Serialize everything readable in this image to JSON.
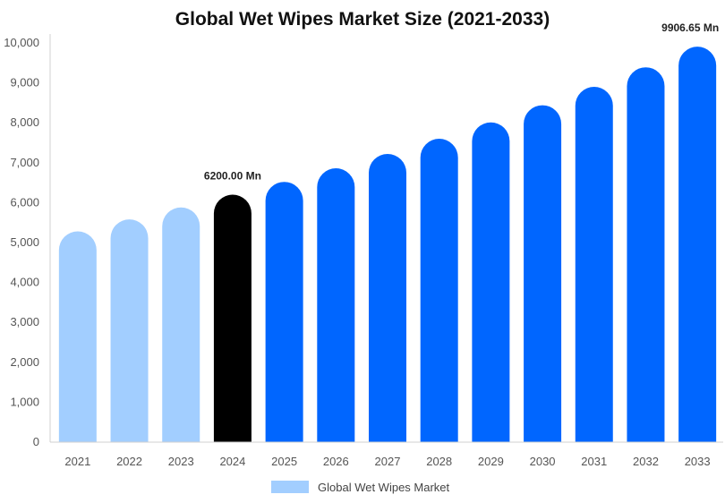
{
  "chart_data": {
    "type": "bar",
    "title": "Global Wet Wipes Market Size (2021-2033)",
    "xlabel": "",
    "ylabel": "",
    "ylim": [
      0,
      10000
    ],
    "yticks": [
      0,
      1000,
      2000,
      3000,
      4000,
      5000,
      6000,
      7000,
      8000,
      9000,
      10000
    ],
    "ytick_labels": [
      "0",
      "1,000",
      "2,000",
      "3,000",
      "4,000",
      "5,000",
      "6,000",
      "7,000",
      "8,000",
      "9,000",
      "10,000"
    ],
    "categories": [
      "2021",
      "2022",
      "2023",
      "2024",
      "2025",
      "2026",
      "2027",
      "2028",
      "2029",
      "2030",
      "2031",
      "2032",
      "2033"
    ],
    "series": [
      {
        "name": "Global Wet Wipes Market",
        "values": [
          5280,
          5580,
          5880,
          6200,
          6520,
          6860,
          7220,
          7600,
          8010,
          8440,
          8900,
          9390,
          9906.65
        ]
      }
    ],
    "bar_colors": [
      "#a2ceff",
      "#a2ceff",
      "#a2ceff",
      "#000000",
      "#0066ff",
      "#0066ff",
      "#0066ff",
      "#0066ff",
      "#0066ff",
      "#0066ff",
      "#0066ff",
      "#0066ff",
      "#0066ff"
    ],
    "data_labels": [
      {
        "index": 3,
        "text": "6200.00 Mn"
      },
      {
        "index": 12,
        "text": "9906.65 Mn"
      }
    ],
    "legend": {
      "placement": "bottom-center",
      "label": "Global Wet Wipes Market",
      "color": "#a2ceff"
    },
    "grid": false
  }
}
